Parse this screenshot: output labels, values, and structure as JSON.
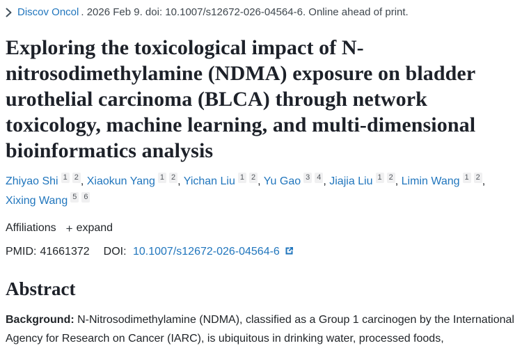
{
  "citation": {
    "journal": "Discov Oncol",
    "rest": ". 2026 Feb 9. doi: 10.1007/s12672-026-04564-6. Online ahead of print."
  },
  "title": "Exploring the toxicological impact of N-nitrosodimethylamine (NDMA) exposure on bladder urothelial carcinoma (BLCA) through network toxicology, machine learning, and multi-dimensional bioinformatics analysis",
  "authors": [
    {
      "name": "Zhiyao Shi",
      "affiliations": [
        "1",
        "2"
      ]
    },
    {
      "name": "Xiaokun Yang",
      "affiliations": [
        "1",
        "2"
      ]
    },
    {
      "name": "Yichan Liu",
      "affiliations": [
        "1",
        "2"
      ]
    },
    {
      "name": "Yu Gao",
      "affiliations": [
        "3",
        "4"
      ]
    },
    {
      "name": "Jiajia Liu",
      "affiliations": [
        "1",
        "2"
      ]
    },
    {
      "name": "Limin Wang",
      "affiliations": [
        "1",
        "2"
      ]
    },
    {
      "name": "Xixing Wang",
      "affiliations": [
        "5",
        "6"
      ]
    }
  ],
  "affiliations_row": {
    "label": "Affiliations",
    "expand_label": "expand",
    "plus_glyph": "+"
  },
  "identifiers": {
    "pmid_label": "PMID:",
    "pmid": "41661372",
    "doi_label": "DOI:",
    "doi": "10.1007/s12672-026-04564-6"
  },
  "abstract": {
    "heading": "Abstract",
    "background_label": "Background:",
    "background_text": " N-Nitrosodimethylamine (NDMA), classified as a Group 1 carcinogen by the International Agency for Research on Cancer (IARC), is ubiquitous in drinking water, processed foods,"
  },
  "icons": {
    "chevron_right": "chevron-right-icon",
    "external_link": "external-link-icon",
    "plus": "plus-icon"
  },
  "colors": {
    "link_blue": "#2176bd",
    "body_text": "#212529",
    "title_text": "#1d2129",
    "chip_bg": "#f0f0f1"
  }
}
